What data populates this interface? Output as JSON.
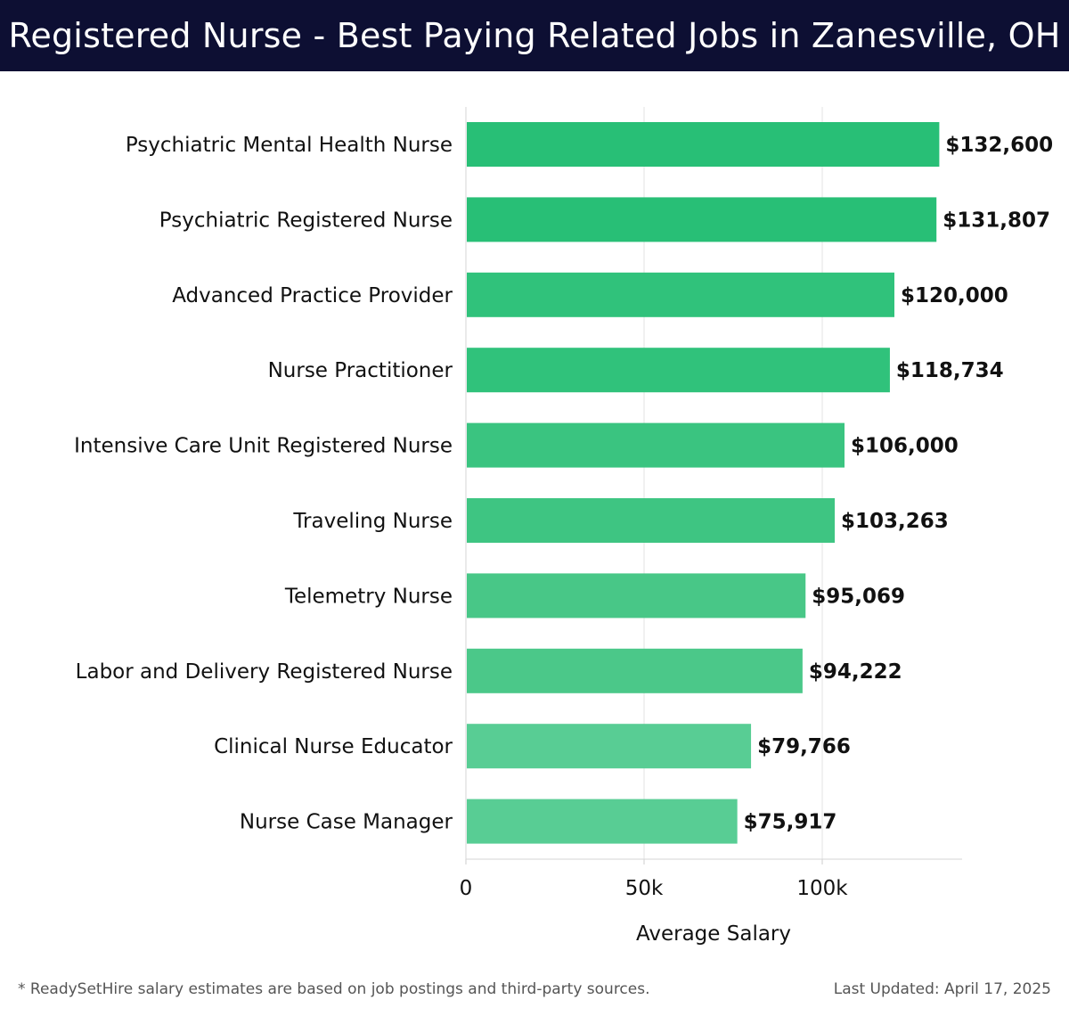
{
  "header": {
    "title": "Registered Nurse - Best Paying Related Jobs in Zanesville, OH"
  },
  "chart_data": {
    "type": "bar",
    "orientation": "horizontal",
    "title": "Registered Nurse - Best Paying Related Jobs in Zanesville, OH",
    "xlabel": "Average Salary",
    "ylabel": "",
    "xlim": [
      0,
      140000
    ],
    "x_ticks": [
      0,
      50000,
      100000
    ],
    "x_tick_labels": [
      "0",
      "50k",
      "100k"
    ],
    "grid": true,
    "categories": [
      "Psychiatric Mental Health Nurse",
      "Psychiatric Registered Nurse",
      "Advanced Practice Provider",
      "Nurse Practitioner",
      "Intensive Care Unit Registered Nurse",
      "Traveling Nurse",
      "Telemetry Nurse",
      "Labor and Delivery Registered Nurse",
      "Clinical Nurse Educator",
      "Nurse Case Manager"
    ],
    "values": [
      132600,
      131807,
      120000,
      118734,
      106000,
      103263,
      95069,
      94222,
      79766,
      75917
    ],
    "value_labels": [
      "$132,600",
      "$131,807",
      "$120,000",
      "$118,734",
      "$106,000",
      "$103,263",
      "$95,069",
      "$94,222",
      "$79,766",
      "$75,917"
    ],
    "bar_colors": [
      "#28bf76",
      "#28bf76",
      "#30c27b",
      "#30c27b",
      "#3ac480",
      "#3ec582",
      "#48c787",
      "#4bc889",
      "#58cd94",
      "#58cd94"
    ]
  },
  "footer": {
    "note": "* ReadySetHire salary estimates are based on job postings and third-party sources.",
    "updated": "Last Updated: April 17, 2025"
  }
}
